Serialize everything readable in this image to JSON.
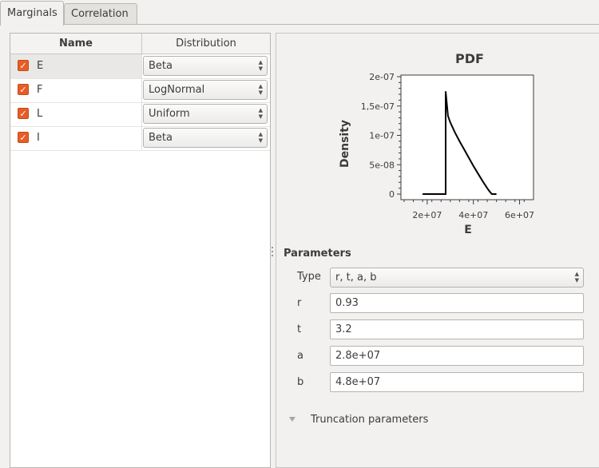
{
  "tabs": [
    {
      "label": "Marginals",
      "active": true
    },
    {
      "label": "Correlation",
      "active": false
    }
  ],
  "table": {
    "headers": {
      "name": "Name",
      "distribution": "Distribution"
    },
    "rows": [
      {
        "name": "E",
        "distribution": "Beta",
        "checked": true,
        "selected": true
      },
      {
        "name": "F",
        "distribution": "LogNormal",
        "checked": true,
        "selected": false
      },
      {
        "name": "L",
        "distribution": "Uniform",
        "checked": true,
        "selected": false
      },
      {
        "name": "I",
        "distribution": "Beta",
        "checked": true,
        "selected": false
      }
    ]
  },
  "chart_data": {
    "type": "line",
    "title": "PDF",
    "xlabel": "E",
    "ylabel": "Density",
    "xlim": [
      10000000.0,
      65000000.0
    ],
    "ylim": [
      0,
      2e-07
    ],
    "x_ticks": [
      {
        "value": 20000000.0,
        "label": "2e+07"
      },
      {
        "value": 40000000.0,
        "label": "4e+07"
      },
      {
        "value": 60000000.0,
        "label": "6e+07"
      }
    ],
    "y_ticks": [
      {
        "value": 0,
        "label": "0"
      },
      {
        "value": 5e-08,
        "label": "5e-08"
      },
      {
        "value": 1e-07,
        "label": "1e-07"
      },
      {
        "value": 1.5e-07,
        "label": "1,5e-07"
      },
      {
        "value": 2e-07,
        "label": "2e-07"
      }
    ],
    "series": [
      {
        "x": [
          18000000.0,
          28000000.0,
          28000000.0,
          29000000.0,
          30000000.0,
          32000000.0,
          34000000.0,
          36000000.0,
          38000000.0,
          40000000.0,
          42000000.0,
          44000000.0,
          46000000.0,
          47000000.0,
          48000000.0,
          50000000.0
        ],
        "y": [
          0,
          0,
          1.75e-07,
          1.33e-07,
          1.22e-07,
          1.05e-07,
          9e-08,
          7.6e-08,
          6.2e-08,
          4.8e-08,
          3.5e-08,
          2.2e-08,
          1e-08,
          4.5e-09,
          0,
          0
        ]
      }
    ],
    "grid": false
  },
  "params": {
    "title": "Parameters",
    "type_label": "Type",
    "type_value": "r, t, a, b",
    "fields": [
      {
        "label": "r",
        "value": "0.93"
      },
      {
        "label": "t",
        "value": "3.2"
      },
      {
        "label": "a",
        "value": "2.8e+07"
      },
      {
        "label": "b",
        "value": "4.8e+07"
      }
    ]
  },
  "truncation": {
    "label": "Truncation parameters"
  }
}
